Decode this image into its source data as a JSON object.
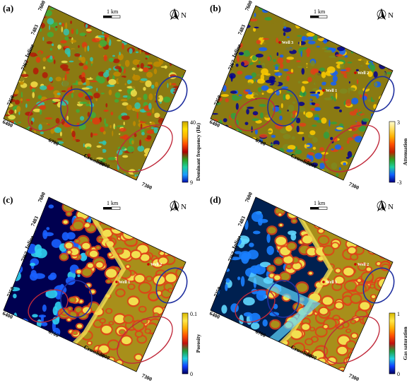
{
  "panels": [
    {
      "letter": "(a)",
      "scale": "1 km",
      "north": "N",
      "inline_label": "Inline",
      "crossline_label": "Crossline",
      "inline_ticks": [
        "7600",
        "7483",
        "7367",
        "7250"
      ],
      "crossline_ticks": [
        "6400",
        "6700",
        "7000",
        "7300"
      ],
      "colorbar": {
        "title": "Dominant frequency (Hz)",
        "max": "40",
        "min": "9",
        "colors": [
          "#c8a600",
          "#ffe000",
          "#ffb000",
          "#ff4a00",
          "#b00000",
          "#2ea020",
          "#1ed0a0",
          "#1a9cff",
          "#0010b0"
        ]
      },
      "map_colors": [
        "#8a7a12",
        "#c28b00",
        "#e03a10",
        "#f5e14a",
        "#3eae3a",
        "#30c6b0",
        "#b21a08"
      ],
      "wells": []
    },
    {
      "letter": "(b)",
      "scale": "1 km",
      "north": "N",
      "inline_label": "Inline",
      "crossline_label": "Crossline",
      "inline_ticks": [
        "7600",
        "7483",
        "7367",
        "7250"
      ],
      "crossline_ticks": [
        "6400",
        "6700",
        "7000",
        "7300"
      ],
      "colorbar": {
        "title": "Attenuation",
        "max": "3",
        "min": "-3",
        "colors": [
          "#fffbd0",
          "#ffe060",
          "#ffb000",
          "#ff5000",
          "#c02000",
          "#2ea020",
          "#1ed0a0",
          "#1060ff",
          "#000080"
        ]
      },
      "map_colors": [
        "#8a7a12",
        "#7e8a20",
        "#e04018",
        "#2fa040",
        "#1060ff",
        "#000090",
        "#ffcc00"
      ],
      "wells": [
        "Well 1",
        "Well 2",
        "Well 3"
      ]
    },
    {
      "letter": "(c)",
      "scale": "1 km",
      "north": "N",
      "inline_label": "Inline",
      "crossline_label": "Crossline",
      "inline_ticks": [
        "7600",
        "7483",
        "7367",
        "7250"
      ],
      "crossline_ticks": [
        "6400",
        "6700",
        "7000",
        "7300"
      ],
      "colorbar": {
        "title": "Porosity",
        "max": "0.1",
        "min": "0",
        "colors": [
          "#d8b800",
          "#ffe84a",
          "#ffb000",
          "#ff5000",
          "#c01010",
          "#20a040",
          "#20d0e0",
          "#1040ff",
          "#000060"
        ]
      },
      "map_colors": [
        "#a88f1a",
        "#f2e050",
        "#e04018",
        "#000050",
        "#1a60ff",
        "#30d0f0"
      ],
      "wells": [
        "Well 1",
        "Well 2"
      ]
    },
    {
      "letter": "(d)",
      "scale": "1 km",
      "north": "N",
      "inline_label": "Inline",
      "crossline_label": "Crossline",
      "inline_ticks": [
        "7600",
        "7483",
        "7367",
        "7250"
      ],
      "crossline_ticks": [
        "6400",
        "6700",
        "7000",
        "7300"
      ],
      "colorbar": {
        "title": "Gas saturation",
        "max": "1",
        "min": "0",
        "colors": [
          "#d8b800",
          "#ffe84a",
          "#ffb000",
          "#ff5000",
          "#c01010",
          "#20a040",
          "#20d0e0",
          "#1040ff",
          "#000060"
        ]
      },
      "map_colors": [
        "#a88f1a",
        "#f2e050",
        "#e04018",
        "#002050",
        "#1a80ff",
        "#60d8ff"
      ],
      "wells": [
        "Well 1",
        "Well 2"
      ]
    }
  ]
}
